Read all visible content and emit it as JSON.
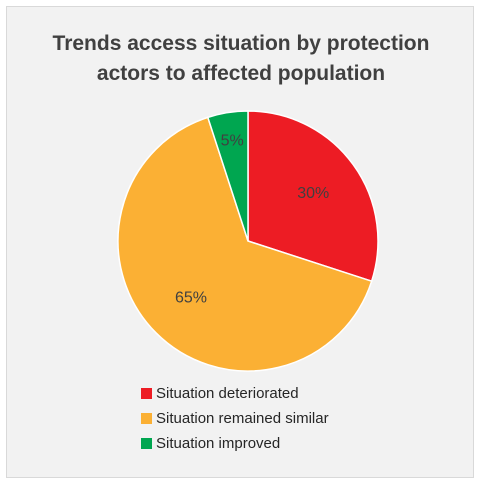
{
  "chart_data": {
    "type": "pie",
    "title_lines": [
      "Trends access situation by protection",
      "actors to affected population"
    ],
    "slices": [
      {
        "label": "Situation deteriorated",
        "value": 30,
        "display": "30%",
        "color": "#ed1c24",
        "text_color": "#404040"
      },
      {
        "label": "Situation remained similar",
        "value": 65,
        "display": "65%",
        "color": "#fbb034",
        "text_color": "#404040"
      },
      {
        "label": "Situation improved",
        "value": 5,
        "display": "5%",
        "color": "#00a650",
        "text_color": "#404040"
      }
    ],
    "start_angle_deg": 0,
    "direction": "clockwise",
    "legend_position": "bottom"
  }
}
